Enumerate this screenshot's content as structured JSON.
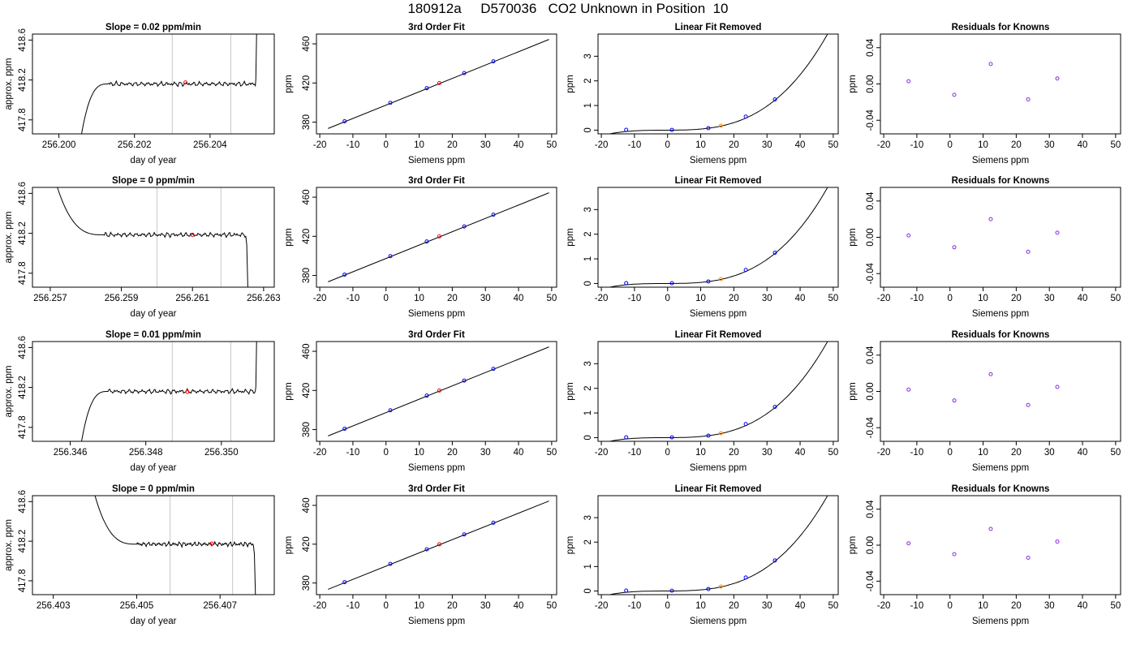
{
  "title": "180912a     D570036   CO2 Unknown in Position  10",
  "colors": {
    "axis": "#000000",
    "trace": "#000000",
    "window_line": "#c8c8c8",
    "unknown_point": "#ff0000",
    "unknown_point_linear": "#ff8c00",
    "known_point": "#0000ff",
    "residual_point": "#8a2be2"
  },
  "chart_data": [
    {
      "type": "line",
      "row": 1,
      "title": "Slope =  0.02  ppm/min",
      "xlabel": "day of year",
      "ylabel": "approx. ppm",
      "xlim": [
        256.1993,
        256.2057
      ],
      "ylim": [
        417.66,
        418.66
      ],
      "xticks": [
        "256.200",
        "256.202",
        "256.204"
      ],
      "xtick_values": [
        256.2,
        256.202,
        256.204
      ],
      "yticks": [
        "417.8",
        "418.2",
        "418.6"
      ],
      "ytick_values": [
        417.8,
        418.2,
        418.6
      ],
      "window_lines": [
        256.203,
        256.20455
      ],
      "unknown_point": {
        "x": 256.20335,
        "y": 418.175
      },
      "trace": {
        "rise_start": [
          256.2006,
          417.66
        ],
        "plateau_start": 256.2013,
        "plateau_level": 418.16,
        "plateau_end": 256.2052,
        "tail": "up"
      }
    },
    {
      "type": "line",
      "row": 1,
      "title": "3rd Order Fit",
      "xlabel": "Siemens ppm",
      "ylabel": "ppm",
      "xlim": [
        -21,
        51.5
      ],
      "ylim": [
        368,
        470
      ],
      "xticks": [
        "-20",
        "-10",
        "0",
        "10",
        "20",
        "30",
        "40",
        "50"
      ],
      "xtick_values": [
        -20,
        -10,
        0,
        10,
        20,
        30,
        40,
        50
      ],
      "yticks": [
        "380",
        "420",
        "460"
      ],
      "ytick_values": [
        380,
        420,
        460
      ],
      "fit_line": {
        "x": [
          -17.5,
          49.2
        ],
        "y": [
          373.5,
          464.5
        ]
      },
      "knowns": {
        "x": [
          -12.5,
          1.3,
          12.3,
          23.6,
          32.4
        ],
        "y": [
          380.9,
          399.7,
          414.7,
          430.1,
          442.1
        ]
      },
      "unknown": {
        "x": 16.1,
        "y": 419.9
      }
    },
    {
      "type": "line",
      "row": 1,
      "title": "Linear Fit Removed",
      "xlabel": "Siemens ppm",
      "ylabel": "ppm",
      "xlim": [
        -21,
        51.5
      ],
      "ylim": [
        -0.15,
        3.9
      ],
      "xticks": [
        "-20",
        "-10",
        "0",
        "10",
        "20",
        "30",
        "40",
        "50"
      ],
      "xtick_values": [
        -20,
        -10,
        0,
        10,
        20,
        30,
        40,
        50
      ],
      "yticks": [
        "0",
        "1",
        "2",
        "3"
      ],
      "ytick_values": [
        0,
        1,
        2,
        3
      ],
      "curve": {
        "x_range": [
          -20,
          49.2
        ],
        "coeffs": [
          3.24e-05,
          0.0001,
          0.0004,
          -0.0011
        ]
      },
      "knowns": {
        "x": [
          -12.5,
          1.3,
          12.3,
          23.6,
          32.4
        ],
        "y": [
          0.015,
          0.012,
          0.08,
          0.55,
          1.25
        ]
      },
      "unknown": {
        "x": 16.1,
        "y": 0.18
      }
    },
    {
      "type": "scatter",
      "row": 1,
      "title": "Residuals for Knowns",
      "xlabel": "Siemens ppm",
      "ylabel": "ppm",
      "xlim": [
        -21,
        51.5
      ],
      "ylim": [
        -0.055,
        0.055
      ],
      "xticks": [
        "-20",
        "-10",
        "0",
        "10",
        "20",
        "30",
        "40",
        "50"
      ],
      "xtick_values": [
        -20,
        -10,
        0,
        10,
        20,
        30,
        40,
        50
      ],
      "yticks": [
        "-0.04",
        "0.00",
        "0.04"
      ],
      "ytick_values": [
        -0.04,
        0.0,
        0.04
      ],
      "points": {
        "x": [
          -12.5,
          1.3,
          12.3,
          23.6,
          32.4
        ],
        "y": [
          0.003,
          -0.012,
          0.022,
          -0.017,
          0.006
        ]
      }
    },
    {
      "type": "line",
      "row": 2,
      "title": "Slope =  0  ppm/min",
      "xlabel": "day of year",
      "ylabel": "approx. ppm",
      "xlim": [
        256.2565,
        256.2633
      ],
      "ylim": [
        417.66,
        418.66
      ],
      "xticks": [
        "256.257",
        "256.259",
        "256.261",
        "256.263"
      ],
      "xtick_values": [
        256.257,
        256.259,
        256.261,
        256.263
      ],
      "yticks": [
        "417.8",
        "418.2",
        "418.6"
      ],
      "ytick_values": [
        417.8,
        418.2,
        418.6
      ],
      "window_lines": [
        256.26,
        256.2618
      ],
      "unknown_point": {
        "x": 256.261,
        "y": 418.185
      },
      "trace": {
        "fall_start": [
          256.2572,
          418.66
        ],
        "plateau_start": 256.2585,
        "plateau_level": 418.185,
        "plateau_end": 256.2625,
        "tail": "down"
      }
    },
    {
      "type": "line",
      "row": 2,
      "title": "3rd Order Fit",
      "xlabel": "Siemens ppm",
      "ylabel": "ppm",
      "xlim": [
        -21,
        51.5
      ],
      "ylim": [
        368,
        470
      ],
      "xticks": [
        "-20",
        "-10",
        "0",
        "10",
        "20",
        "30",
        "40",
        "50"
      ],
      "xtick_values": [
        -20,
        -10,
        0,
        10,
        20,
        30,
        40,
        50
      ],
      "yticks": [
        "380",
        "420",
        "460"
      ],
      "ytick_values": [
        380,
        420,
        460
      ],
      "fit_line": {
        "x": [
          -17.5,
          49.2
        ],
        "y": [
          373.5,
          464.5
        ]
      },
      "knowns": {
        "x": [
          -12.5,
          1.3,
          12.3,
          23.6,
          32.4
        ],
        "y": [
          380.9,
          399.7,
          414.7,
          430.1,
          442.1
        ]
      },
      "unknown": {
        "x": 16.1,
        "y": 419.9
      }
    },
    {
      "type": "line",
      "row": 2,
      "title": "Linear Fit Removed",
      "xlabel": "Siemens ppm",
      "ylabel": "ppm",
      "xlim": [
        -21,
        51.5
      ],
      "ylim": [
        -0.15,
        3.9
      ],
      "xticks": [
        "-20",
        "-10",
        "0",
        "10",
        "20",
        "30",
        "40",
        "50"
      ],
      "xtick_values": [
        -20,
        -10,
        0,
        10,
        20,
        30,
        40,
        50
      ],
      "yticks": [
        "0",
        "1",
        "2",
        "3"
      ],
      "ytick_values": [
        0,
        1,
        2,
        3
      ],
      "curve": {
        "x_range": [
          -20,
          49.2
        ],
        "coeffs": [
          3.24e-05,
          0.0001,
          0.0004,
          -0.0011
        ]
      },
      "knowns": {
        "x": [
          -12.5,
          1.3,
          12.3,
          23.6,
          32.4
        ],
        "y": [
          0.015,
          0.012,
          0.08,
          0.55,
          1.25
        ]
      },
      "unknown": {
        "x": 16.1,
        "y": 0.18
      }
    },
    {
      "type": "scatter",
      "row": 2,
      "title": "Residuals for Knowns",
      "xlabel": "Siemens ppm",
      "ylabel": "ppm",
      "xlim": [
        -21,
        51.5
      ],
      "ylim": [
        -0.055,
        0.055
      ],
      "xticks": [
        "-20",
        "-10",
        "0",
        "10",
        "20",
        "30",
        "40",
        "50"
      ],
      "xtick_values": [
        -20,
        -10,
        0,
        10,
        20,
        30,
        40,
        50
      ],
      "yticks": [
        "-0.04",
        "0.00",
        "0.04"
      ],
      "ytick_values": [
        -0.04,
        0.0,
        0.04
      ],
      "points": {
        "x": [
          -12.5,
          1.3,
          12.3,
          23.6,
          32.4
        ],
        "y": [
          0.002,
          -0.011,
          0.02,
          -0.016,
          0.005
        ]
      }
    },
    {
      "type": "line",
      "row": 3,
      "title": "Slope =  0.01  ppm/min",
      "xlabel": "day of year",
      "ylabel": "approx. ppm",
      "xlim": [
        256.345,
        256.3514
      ],
      "ylim": [
        417.66,
        418.66
      ],
      "xticks": [
        "256.346",
        "256.348",
        "256.350"
      ],
      "xtick_values": [
        256.346,
        256.348,
        256.35
      ],
      "yticks": [
        "417.8",
        "418.2",
        "418.6"
      ],
      "ytick_values": [
        417.8,
        418.2,
        418.6
      ],
      "window_lines": [
        256.3487,
        256.35025
      ],
      "unknown_point": {
        "x": 256.3491,
        "y": 418.155
      },
      "trace": {
        "rise_start": [
          256.3463,
          417.66
        ],
        "plateau_start": 256.347,
        "plateau_level": 418.16,
        "plateau_end": 256.3509,
        "tail": "up"
      }
    },
    {
      "type": "line",
      "row": 3,
      "title": "3rd Order Fit",
      "xlabel": "Siemens ppm",
      "ylabel": "ppm",
      "xlim": [
        -21,
        51.5
      ],
      "ylim": [
        368,
        470
      ],
      "xticks": [
        "-20",
        "-10",
        "0",
        "10",
        "20",
        "30",
        "40",
        "50"
      ],
      "xtick_values": [
        -20,
        -10,
        0,
        10,
        20,
        30,
        40,
        50
      ],
      "yticks": [
        "380",
        "420",
        "460"
      ],
      "ytick_values": [
        380,
        420,
        460
      ],
      "fit_line": {
        "x": [
          -17.5,
          49.2
        ],
        "y": [
          373.5,
          464.5
        ]
      },
      "knowns": {
        "x": [
          -12.5,
          1.3,
          12.3,
          23.6,
          32.4
        ],
        "y": [
          380.9,
          399.7,
          414.7,
          430.1,
          442.1
        ]
      },
      "unknown": {
        "x": 16.1,
        "y": 419.9
      }
    },
    {
      "type": "line",
      "row": 3,
      "title": "Linear Fit Removed",
      "xlabel": "Siemens ppm",
      "ylabel": "ppm",
      "xlim": [
        -21,
        51.5
      ],
      "ylim": [
        -0.15,
        3.9
      ],
      "xticks": [
        "-20",
        "-10",
        "0",
        "10",
        "20",
        "30",
        "40",
        "50"
      ],
      "xtick_values": [
        -20,
        -10,
        0,
        10,
        20,
        30,
        40,
        50
      ],
      "yticks": [
        "0",
        "1",
        "2",
        "3"
      ],
      "ytick_values": [
        0,
        1,
        2,
        3
      ],
      "curve": {
        "x_range": [
          -20,
          49.2
        ],
        "coeffs": [
          3.24e-05,
          0.0001,
          0.0004,
          -0.0011
        ]
      },
      "knowns": {
        "x": [
          -12.5,
          1.3,
          12.3,
          23.6,
          32.4
        ],
        "y": [
          0.015,
          0.012,
          0.08,
          0.55,
          1.25
        ]
      },
      "unknown": {
        "x": 16.1,
        "y": 0.18
      }
    },
    {
      "type": "scatter",
      "row": 3,
      "title": "Residuals for Knowns",
      "xlabel": "Siemens ppm",
      "ylabel": "ppm",
      "xlim": [
        -21,
        51.5
      ],
      "ylim": [
        -0.055,
        0.055
      ],
      "xticks": [
        "-20",
        "-10",
        "0",
        "10",
        "20",
        "30",
        "40",
        "50"
      ],
      "xtick_values": [
        -20,
        -10,
        0,
        10,
        20,
        30,
        40,
        50
      ],
      "yticks": [
        "-0.04",
        "0.00",
        "0.04"
      ],
      "ytick_values": [
        -0.04,
        0.0,
        0.04
      ],
      "points": {
        "x": [
          -12.5,
          1.3,
          12.3,
          23.6,
          32.4
        ],
        "y": [
          0.002,
          -0.01,
          0.019,
          -0.015,
          0.005
        ]
      }
    },
    {
      "type": "line",
      "row": 4,
      "title": "Slope =  0  ppm/min",
      "xlabel": "day of year",
      "ylabel": "approx. ppm",
      "xlim": [
        256.4025,
        256.4083
      ],
      "ylim": [
        417.66,
        418.66
      ],
      "xticks": [
        "256.403",
        "256.405",
        "256.407"
      ],
      "xtick_values": [
        256.403,
        256.405,
        256.407
      ],
      "yticks": [
        "417.8",
        "418.2",
        "418.6"
      ],
      "ytick_values": [
        417.8,
        418.2,
        418.6
      ],
      "window_lines": [
        256.4058,
        256.4073
      ],
      "unknown_point": {
        "x": 256.4068,
        "y": 418.175
      },
      "trace": {
        "fall_start": [
          256.404,
          418.66
        ],
        "plateau_start": 256.405,
        "plateau_level": 418.17,
        "plateau_end": 256.4078,
        "tail": "down"
      }
    },
    {
      "type": "line",
      "row": 4,
      "title": "3rd Order Fit",
      "xlabel": "Siemens ppm",
      "ylabel": "ppm",
      "xlim": [
        -21,
        51.5
      ],
      "ylim": [
        368,
        470
      ],
      "xticks": [
        "-20",
        "-10",
        "0",
        "10",
        "20",
        "30",
        "40",
        "50"
      ],
      "xtick_values": [
        -20,
        -10,
        0,
        10,
        20,
        30,
        40,
        50
      ],
      "yticks": [
        "380",
        "420",
        "460"
      ],
      "ytick_values": [
        380,
        420,
        460
      ],
      "fit_line": {
        "x": [
          -17.5,
          49.2
        ],
        "y": [
          373.5,
          464.5
        ]
      },
      "knowns": {
        "x": [
          -12.5,
          1.3,
          12.3,
          23.6,
          32.4
        ],
        "y": [
          380.9,
          399.7,
          414.7,
          430.1,
          442.1
        ]
      },
      "unknown": {
        "x": 16.1,
        "y": 419.9
      }
    },
    {
      "type": "line",
      "row": 4,
      "title": "Linear Fit Removed",
      "xlabel": "Siemens ppm",
      "ylabel": "ppm",
      "xlim": [
        -21,
        51.5
      ],
      "ylim": [
        -0.15,
        3.9
      ],
      "xticks": [
        "-20",
        "-10",
        "0",
        "10",
        "20",
        "30",
        "40",
        "50"
      ],
      "xtick_values": [
        -20,
        -10,
        0,
        10,
        20,
        30,
        40,
        50
      ],
      "yticks": [
        "0",
        "1",
        "2",
        "3"
      ],
      "ytick_values": [
        0,
        1,
        2,
        3
      ],
      "curve": {
        "x_range": [
          -20,
          49.2
        ],
        "coeffs": [
          3.24e-05,
          0.0001,
          0.0004,
          -0.0011
        ]
      },
      "knowns": {
        "x": [
          -12.5,
          1.3,
          12.3,
          23.6,
          32.4
        ],
        "y": [
          0.015,
          0.012,
          0.08,
          0.55,
          1.25
        ]
      },
      "unknown": {
        "x": 16.1,
        "y": 0.18
      }
    },
    {
      "type": "scatter",
      "row": 4,
      "title": "Residuals for Knowns",
      "xlabel": "Siemens ppm",
      "ylabel": "ppm",
      "xlim": [
        -21,
        51.5
      ],
      "ylim": [
        -0.055,
        0.055
      ],
      "xticks": [
        "-20",
        "-10",
        "0",
        "10",
        "20",
        "30",
        "40",
        "50"
      ],
      "xtick_values": [
        -20,
        -10,
        0,
        10,
        20,
        30,
        40,
        50
      ],
      "yticks": [
        "-0.04",
        "0.00",
        "0.04"
      ],
      "ytick_values": [
        -0.04,
        0.0,
        0.04
      ],
      "points": {
        "x": [
          -12.5,
          1.3,
          12.3,
          23.6,
          32.4
        ],
        "y": [
          0.002,
          -0.01,
          0.018,
          -0.014,
          0.004
        ]
      }
    }
  ]
}
